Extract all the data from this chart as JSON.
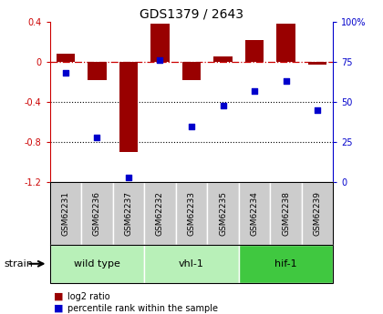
{
  "title": "GDS1379 / 2643",
  "samples": [
    "GSM62231",
    "GSM62236",
    "GSM62237",
    "GSM62232",
    "GSM62233",
    "GSM62235",
    "GSM62234",
    "GSM62238",
    "GSM62239"
  ],
  "log2_ratio": [
    0.08,
    -0.18,
    -0.9,
    0.38,
    -0.18,
    0.06,
    0.22,
    0.38,
    -0.03
  ],
  "percentile_rank": [
    68,
    28,
    3,
    76,
    35,
    48,
    57,
    63,
    45
  ],
  "groups": [
    {
      "label": "wild type",
      "start": 0,
      "end": 3,
      "color": "#b8f0b8"
    },
    {
      "label": "vhl-1",
      "start": 3,
      "end": 6,
      "color": "#b8f0b8"
    },
    {
      "label": "hif-1",
      "start": 6,
      "end": 9,
      "color": "#40c840"
    }
  ],
  "ylim_left": [
    -1.2,
    0.4
  ],
  "ylim_right": [
    0,
    100
  ],
  "bar_color": "#990000",
  "scatter_color": "#0000cc",
  "hline_color": "#cc0000",
  "grid_color": "#000000",
  "plot_bg": "#ffffff",
  "sample_box_color": "#cccccc",
  "strain_label": "strain",
  "legend_bar_label": "log2 ratio",
  "legend_scatter_label": "percentile rank within the sample",
  "left_tick_color": "#cc0000",
  "right_tick_color": "#0000cc",
  "left_spine_color": "#cc0000",
  "right_spine_color": "#0000cc"
}
